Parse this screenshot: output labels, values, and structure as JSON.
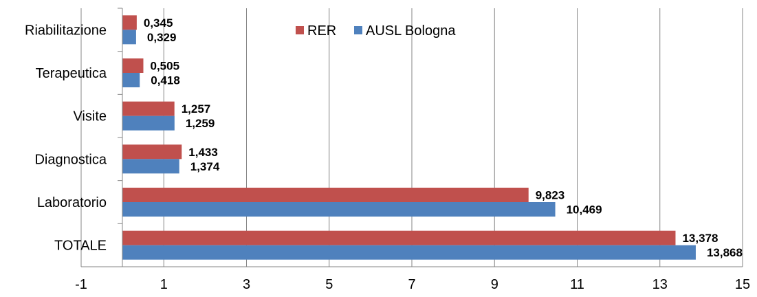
{
  "chart_data": {
    "type": "bar",
    "orientation": "horizontal",
    "categories": [
      "TOTALE",
      "Laboratorio",
      "Diagnostica",
      "Visite",
      "Terapeutica",
      "Riabilitazione"
    ],
    "series": [
      {
        "name": "RER",
        "color": "#C0504D",
        "values": [
          13.378,
          9.823,
          1.433,
          1.257,
          0.505,
          0.345
        ],
        "labels": [
          "13,378",
          "9,823",
          "1,433",
          "1,257",
          "0,505",
          "0,345"
        ]
      },
      {
        "name": "AUSL Bologna",
        "color": "#4F81BD",
        "values": [
          13.868,
          10.469,
          1.374,
          1.259,
          0.418,
          0.329
        ],
        "labels": [
          "13,868",
          "10,469",
          "1,374",
          "1,259",
          "0,418",
          "0,329"
        ]
      }
    ],
    "xlim": [
      -1,
      15
    ],
    "xticks": [
      -1,
      1,
      3,
      5,
      7,
      9,
      11,
      13,
      15
    ],
    "grid": "vertical",
    "legend": "top-center",
    "title": "",
    "xlabel": "",
    "ylabel": ""
  }
}
